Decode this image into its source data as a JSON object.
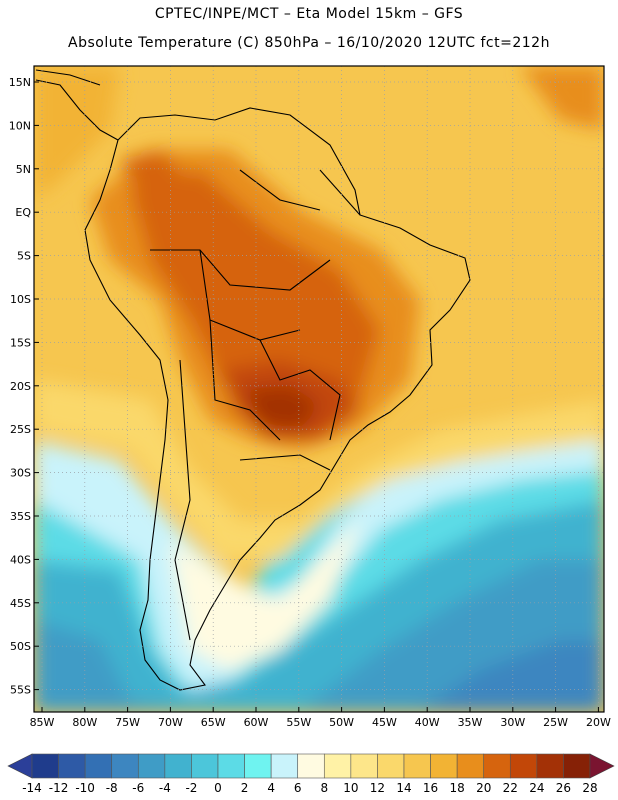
{
  "title_line1": "CPTEC/INPE/MCT –  Eta Model 15km – GFS",
  "title_line2": "Absolute Temperature (C) 850hPa – 16/10/2020 12UTC fct=212h",
  "lat_labels": [
    "15N",
    "10N",
    "5N",
    "EQ",
    "5S",
    "10S",
    "15S",
    "20S",
    "25S",
    "30S",
    "35S",
    "40S",
    "45S",
    "50S",
    "55S"
  ],
  "lon_labels": [
    "85W",
    "80W",
    "75W",
    "70W",
    "65W",
    "60W",
    "55W",
    "50W",
    "45W",
    "40W",
    "35W",
    "30W",
    "25W",
    "20W"
  ],
  "colorbar": {
    "labels": [
      "-14",
      "-12",
      "-10",
      "-8",
      "-6",
      "-4",
      "-2",
      "0",
      "2",
      "4",
      "6",
      "8",
      "10",
      "12",
      "14",
      "16",
      "18",
      "20",
      "22",
      "24",
      "26",
      "28"
    ],
    "colors": [
      "#1f3c8c",
      "#2e5aa6",
      "#3370b4",
      "#3d86c0",
      "#3f9cc6",
      "#41b2cf",
      "#4cc6da",
      "#5cdbe6",
      "#6ff3f0",
      "#c9f3fb",
      "#fffbe1",
      "#fff2a6",
      "#fde68a",
      "#fad86b",
      "#f6c64f",
      "#f2b334",
      "#e88e1c",
      "#d6640e",
      "#c24708",
      "#a33106",
      "#862106"
    ],
    "low_color": "#2b3f99",
    "high_color": "#7a1430",
    "range": [
      -14,
      28
    ]
  },
  "map": {
    "lon_range": [
      -85,
      -20
    ],
    "lat_range": [
      -58,
      17
    ],
    "description_field": "850hPa absolute temperature in degrees C"
  }
}
